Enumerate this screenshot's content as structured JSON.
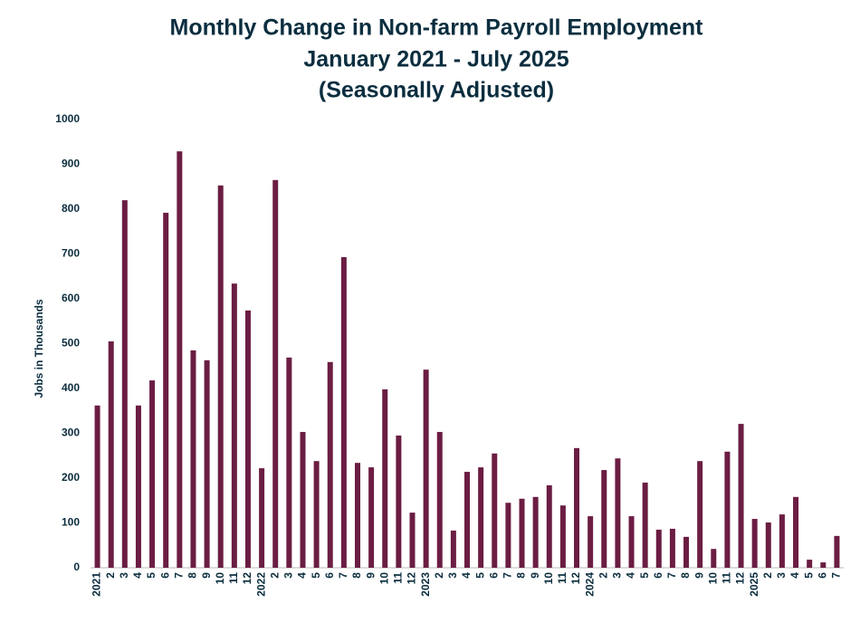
{
  "chart_data": {
    "type": "bar",
    "title": [
      "Monthly Change in Non-farm Payroll Employment",
      "January 2021 - July 2025",
      "(Seasonally Adjusted)"
    ],
    "y_label": "Jobs in Thousands",
    "categories": [
      "2021",
      "2",
      "3",
      "4",
      "5",
      "6",
      "7",
      "8",
      "9",
      "10",
      "11",
      "12",
      "2022",
      "2",
      "3",
      "4",
      "5",
      "6",
      "7",
      "8",
      "9",
      "10",
      "11",
      "12",
      "2023",
      "2",
      "3",
      "4",
      "5",
      "6",
      "7",
      "8",
      "9",
      "10",
      "11",
      "12",
      "2024",
      "2",
      "3",
      "4",
      "5",
      "6",
      "7",
      "8",
      "9",
      "10",
      "11",
      "12",
      "2025",
      "2",
      "3",
      "4",
      "5",
      "6",
      "7"
    ],
    "values": [
      362,
      505,
      820,
      362,
      418,
      792,
      929,
      485,
      463,
      853,
      634,
      574,
      222,
      865,
      469,
      303,
      238,
      459,
      693,
      234,
      224,
      398,
      295,
      123,
      442,
      303,
      83,
      214,
      224,
      255,
      145,
      154,
      158,
      184,
      139,
      267,
      115,
      218,
      244,
      115,
      190,
      85,
      87,
      69,
      238,
      42,
      259,
      321,
      109,
      101,
      119,
      158,
      18,
      12,
      71
    ],
    "color": "#6b1d42",
    "ylim": [
      0,
      1000
    ],
    "yticks": [
      0,
      100,
      200,
      300,
      400,
      500,
      600,
      700,
      800,
      900,
      1000
    ],
    "grid": false
  }
}
